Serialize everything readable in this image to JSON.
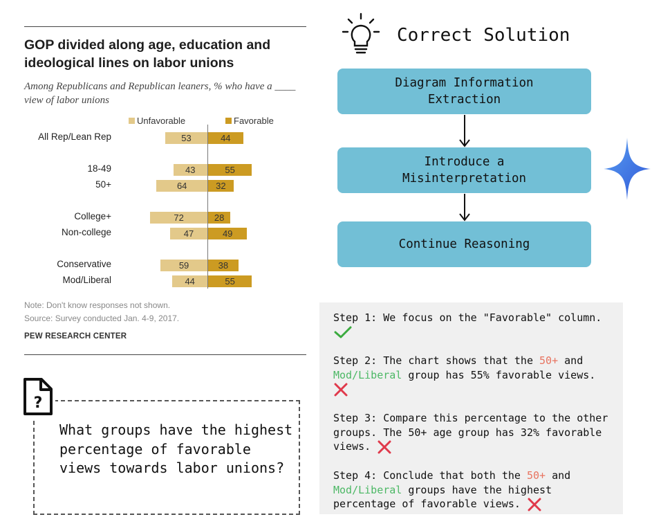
{
  "chart": {
    "title": "GOP divided along age, education and ideological lines on labor unions",
    "subtitle": "Among Republicans and Republican leaners, % who have a ____ view of labor unions",
    "legend_unfavorable": "Unfavorable",
    "legend_favorable": "Favorable",
    "note": "Note: Don't know responses not shown.",
    "source": "Source: Survey conducted Jan. 4-9, 2017.",
    "brand": "PEW RESEARCH CENTER",
    "colors": {
      "unfavorable": "#e3c98a",
      "favorable": "#cc9b22"
    }
  },
  "chart_data": {
    "type": "bar",
    "title": "GOP divided along age, education and ideological lines on labor unions",
    "categories": [
      "All Rep/Lean Rep",
      "18-49",
      "50+",
      "College+",
      "Non-college",
      "Conservative",
      "Mod/Liberal"
    ],
    "series": [
      {
        "name": "Unfavorable",
        "values": [
          53,
          43,
          64,
          72,
          47,
          59,
          44
        ]
      },
      {
        "name": "Favorable",
        "values": [
          44,
          55,
          32,
          28,
          49,
          38,
          55
        ]
      }
    ]
  },
  "solution": {
    "title": "Correct Solution",
    "icon": "lightbulb-icon",
    "flow": [
      "Diagram Information\nExtraction",
      "Introduce a\nMisinterpretation",
      "Continue Reasoning"
    ]
  },
  "question": {
    "icon": "file-question-icon",
    "text": "What groups have the highest percentage of favorable views towards labor unions?"
  },
  "steps": {
    "s1": {
      "text": "Step 1: We focus on the \"Favorable\" column.",
      "mark": "correct"
    },
    "s2": {
      "a": "Step 2: The chart shows that the ",
      "b": "50+",
      "c": " and ",
      "d": "Mod/Liberal",
      "e": " group has 55% favorable views.",
      "mark": "wrong"
    },
    "s3": {
      "text": "Step 3: Compare this percentage to the other groups. The 50+ age group has 32% favorable views.",
      "mark": "wrong"
    },
    "s4": {
      "a": "Step 4: Conclude that both the ",
      "b": "50+",
      "c": " and ",
      "d": "Mod/Liberal",
      "e": " groups have the highest percentage of favorable views.",
      "mark": "wrong"
    }
  }
}
